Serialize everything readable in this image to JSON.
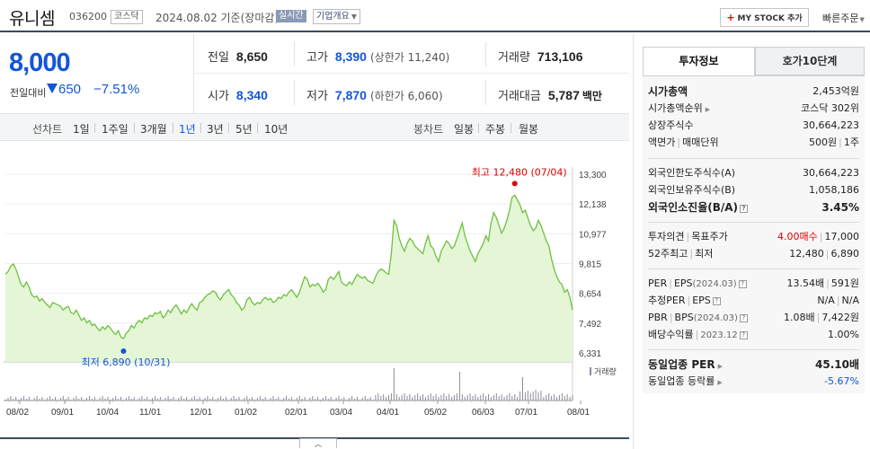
{
  "header": {
    "name": "유니셈",
    "code": "036200",
    "market": "코스닥",
    "date": "2024.08.02  기준(장마감)",
    "realtime": "실시간",
    "corp_info": "기업개요",
    "my_stock": "MY STOCK 추가",
    "quick_order": "빠른주문"
  },
  "price": {
    "current": "8,000",
    "diff_label": "전일대비",
    "diff": "650",
    "rate": "−7.51%",
    "color": "#1456d6"
  },
  "stats": {
    "prev_label": "전일",
    "prev": "8,650",
    "high_label": "고가",
    "high": "8,390",
    "upper_limit": "(상한가 11,240)",
    "volume_label": "거래량",
    "volume": "713,106",
    "open_label": "시가",
    "open": "8,340",
    "low_label": "저가",
    "low": "7,870",
    "lower_limit": "(하한가 6,060)",
    "amount_label": "거래대금",
    "amount": "5,787",
    "amount_unit": "백만"
  },
  "toolbar": {
    "line_label": "선차트",
    "line_periods": [
      "1일",
      "1주일",
      "3개월",
      "1년",
      "3년",
      "5년",
      "10년"
    ],
    "active_period": "1년",
    "candle_label": "봉차트",
    "candle_periods": [
      "일봉",
      "주봉",
      "월봉"
    ]
  },
  "chart_data": {
    "type": "area",
    "y_ticks": [
      "13,300",
      "12,138",
      "10,977",
      "9,815",
      "8,654",
      "7,492",
      "6,331"
    ],
    "ylim": [
      6331,
      13300
    ],
    "x_ticks": [
      "08/02",
      "09/01",
      "10/04",
      "11/01",
      "12/01",
      "01/02",
      "02/01",
      "03/04",
      "04/01",
      "05/02",
      "06/03",
      "07/01",
      "08/01"
    ],
    "high_annotation": "최고 12,480 (07/04)",
    "low_annotation": "최저 6,890 (10/31)",
    "high": 12480,
    "low": 6890,
    "volume_label": "거래량",
    "colors": {
      "line": "#6fc040",
      "fill": "#e4f6d6",
      "high": "#e00000",
      "low": "#1456d6"
    },
    "values": [
      9400,
      9500,
      9700,
      9800,
      9600,
      9300,
      9000,
      8900,
      9100,
      8900,
      8600,
      8500,
      8550,
      8350,
      8450,
      8300,
      8200,
      8100,
      8300,
      8250,
      8200,
      8150,
      8000,
      8100,
      8150,
      7900,
      7850,
      8000,
      7800,
      7600,
      7700,
      7500,
      7600,
      7400,
      7450,
      7300,
      7200,
      7350,
      7250,
      7400,
      7300,
      7150,
      7050,
      7200,
      6950,
      6890,
      7100,
      7200,
      7400,
      7300,
      7500,
      7600,
      7500,
      7700,
      7650,
      7800,
      7750,
      7900,
      7850,
      7950,
      7700,
      7800,
      8000,
      7900,
      8100,
      8200,
      8050,
      7850,
      8000,
      7900,
      8100,
      8250,
      8100,
      8000,
      8300,
      8350,
      8500,
      8600,
      8650,
      8750,
      8700,
      8500,
      8400,
      8600,
      8700,
      8800,
      8600,
      8500,
      8300,
      8200,
      8000,
      8100,
      8400,
      8500,
      8300,
      8200,
      8300,
      8250,
      8400,
      8500,
      8400,
      8450,
      8300,
      8350,
      8500,
      8450,
      8600,
      8550,
      8700,
      8800,
      8650,
      8500,
      8700,
      9000,
      9300,
      9200,
      8900,
      9000,
      8950,
      9050,
      8900,
      8700,
      8800,
      9200,
      9300,
      9200,
      9350,
      9500,
      9100,
      9000,
      8950,
      9100,
      9000,
      9200,
      9400,
      9300,
      9250,
      9300,
      9150,
      9100,
      9050,
      9300,
      9500,
      9600,
      9550,
      9450,
      9400,
      10200,
      11500,
      11300,
      10800,
      10500,
      10300,
      10600,
      10800,
      10700,
      10500,
      10400,
      10300,
      10200,
      10600,
      10900,
      10500,
      10400,
      10100,
      9900,
      10300,
      10500,
      10700,
      10600,
      10400,
      10500,
      10800,
      11100,
      11400,
      10900,
      10600,
      10300,
      10100,
      9900,
      10200,
      10400,
      10600,
      10900,
      10700,
      11400,
      11800,
      11600,
      11300,
      11000,
      11200,
      11500,
      11900,
      12400,
      12480,
      12300,
      12100,
      11800,
      11900,
      11600,
      11300,
      11100,
      11200,
      11500,
      11300,
      11000,
      10700,
      10500,
      10000,
      9600,
      9300,
      9100,
      9000,
      8700,
      8800,
      8500,
      8000
    ]
  },
  "invest": {
    "tab_on": "투자정보",
    "tab_off": "호가10단계",
    "rows": [
      {
        "k": "시가총액",
        "v": "2,453억원"
      },
      {
        "k": "시가총액순위",
        "v": "코스닥 302위"
      },
      {
        "k": "상장주식수",
        "v": "30,664,223"
      },
      {
        "k": "액면가",
        "k2": "매매단위",
        "v": "500원",
        "v2": "1주"
      },
      {
        "k": "외국인한도주식수(A)",
        "v": "30,664,223"
      },
      {
        "k": "외국인보유주식수(B)",
        "v": "1,058,186"
      },
      {
        "k": "외국인소진율(B/A)",
        "v": "3.45%"
      },
      {
        "k": "투자의견",
        "k2": "목표주가",
        "v": "4.00매수",
        "v2": "17,000"
      },
      {
        "k": "52주최고",
        "k2": "최저",
        "v": "12,480",
        "v2": "6,890"
      },
      {
        "k": "PER",
        "k2": "EPS",
        "k2sub": "(2024.03)",
        "v": "13.54배",
        "v2": "591원"
      },
      {
        "k": "추정PER",
        "k2": "EPS",
        "v": "N/A",
        "v2": "N/A"
      },
      {
        "k": "PBR",
        "k2": "BPS",
        "k2sub": "(2024.03)",
        "v": "1.08배",
        "v2": "7,422원"
      },
      {
        "k": "배당수익률",
        "ksub": "2023.12",
        "v": "1.00%"
      },
      {
        "k": "동일업종 PER",
        "v": "45.10배"
      },
      {
        "k": "동일업종 등락률",
        "v": "-5.67%"
      }
    ]
  }
}
